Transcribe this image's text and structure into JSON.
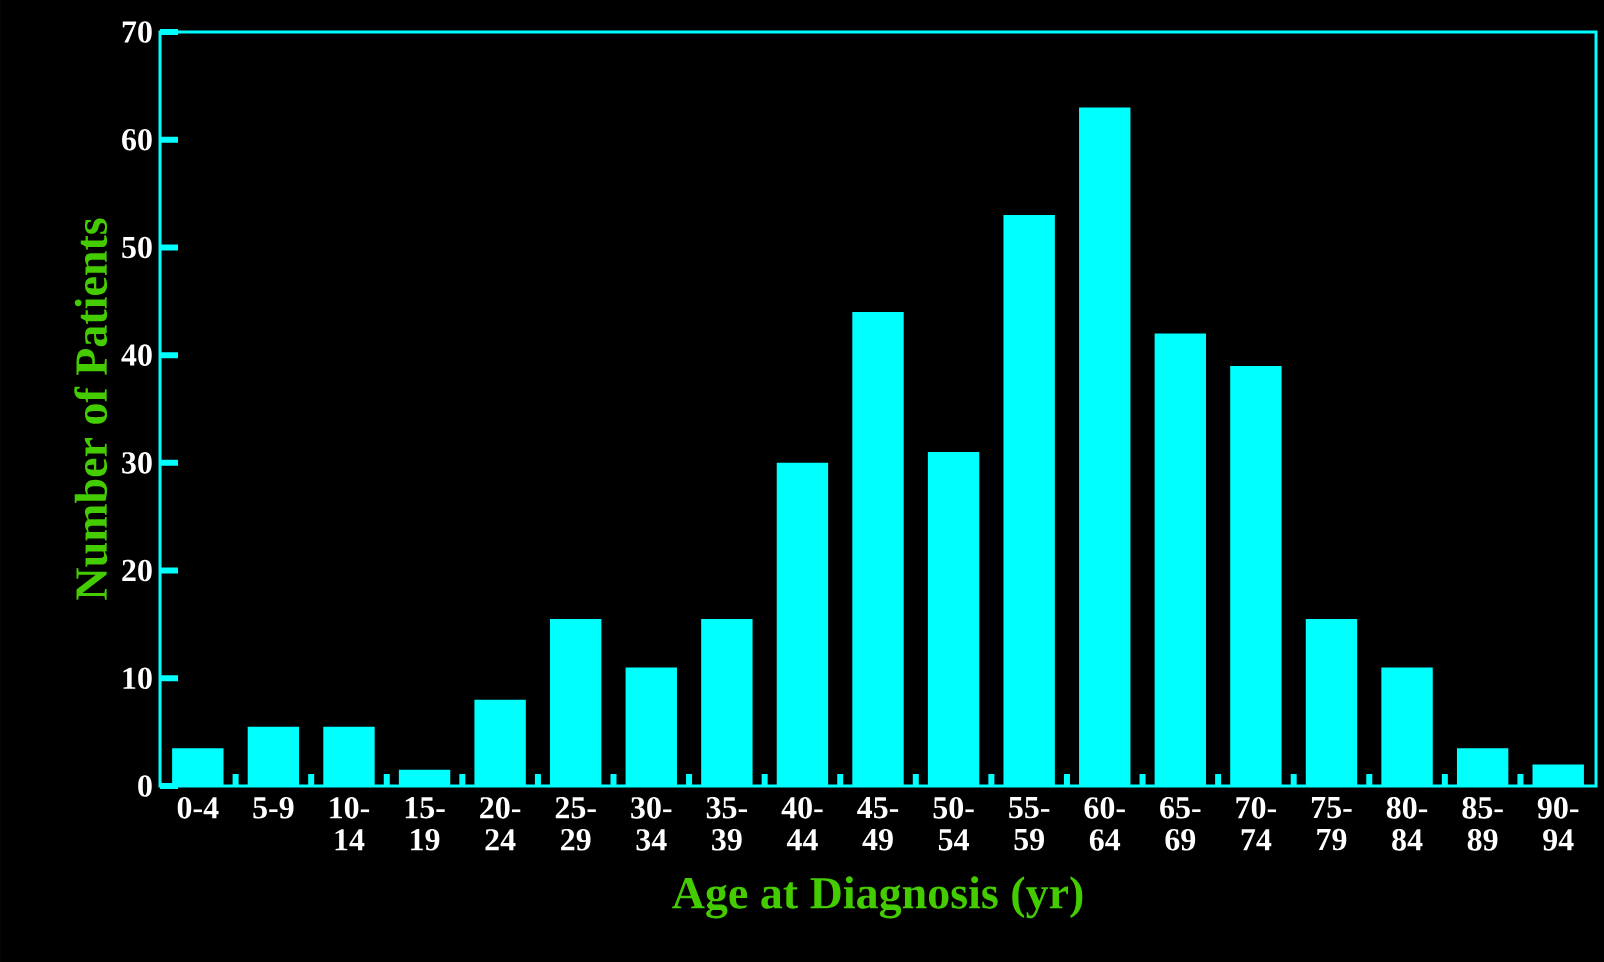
{
  "chart_data": {
    "type": "bar",
    "xlabel": "Age at Diagnosis (yr)",
    "ylabel": "Number of Patients",
    "categories": [
      "0-4",
      "5-9",
      "10-14",
      "15-19",
      "20-24",
      "25-29",
      "30-34",
      "35-39",
      "40-44",
      "45-49",
      "50-54",
      "55-59",
      "60-64",
      "65-69",
      "70-74",
      "75-79",
      "80-84",
      "85-89",
      "90-94"
    ],
    "values": [
      3.5,
      5.5,
      5.5,
      1.5,
      8,
      15.5,
      11,
      15.5,
      30,
      44,
      31,
      53,
      63,
      42,
      39,
      15.5,
      11,
      3.5,
      2
    ],
    "color": "#00ffff",
    "ylim": [
      0,
      70
    ],
    "yticks": [
      0,
      10,
      20,
      30,
      40,
      50,
      60,
      70
    ],
    "grid": false
  }
}
